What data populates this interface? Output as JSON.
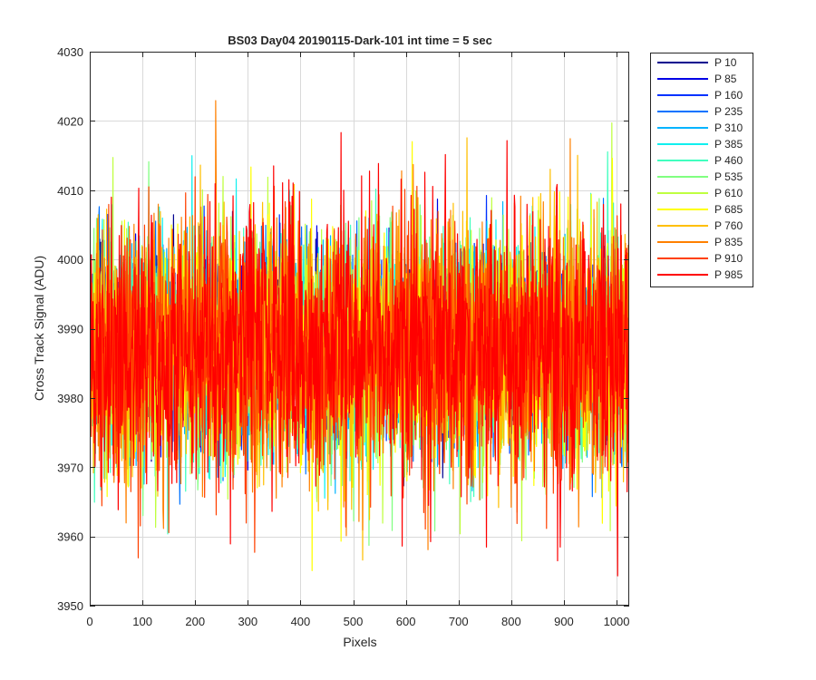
{
  "chart_data": {
    "type": "line",
    "title": "BS03 Day04 20190115-Dark-101 int time = 5 sec",
    "xlabel": "Pixels",
    "ylabel": "Cross Track Signal (ADU)",
    "xlim": [
      0,
      1024
    ],
    "ylim": [
      3950,
      4030
    ],
    "xticks": [
      0,
      100,
      200,
      300,
      400,
      500,
      600,
      700,
      800,
      900,
      1000
    ],
    "yticks": [
      3950,
      3960,
      3970,
      3980,
      3990,
      4000,
      4010,
      4020,
      4030
    ],
    "grid": true,
    "legend_position": "outside-top-right",
    "noise_model": {
      "points_per_series": 1024,
      "mean": 3987,
      "std_dev": 7.5,
      "min_observed": 3951,
      "max_observed": 4023
    },
    "series": [
      {
        "name": "P 10",
        "color": "#00008f"
      },
      {
        "name": "P 85",
        "color": "#0000e6"
      },
      {
        "name": "P 160",
        "color": "#0032ff"
      },
      {
        "name": "P 235",
        "color": "#0073ff"
      },
      {
        "name": "P 310",
        "color": "#00b4ff"
      },
      {
        "name": "P 385",
        "color": "#10f0ef"
      },
      {
        "name": "P 460",
        "color": "#40ffbf"
      },
      {
        "name": "P 535",
        "color": "#80ff80"
      },
      {
        "name": "P 610",
        "color": "#bfff40"
      },
      {
        "name": "P 685",
        "color": "#ffff00"
      },
      {
        "name": "P 760",
        "color": "#ffbf00"
      },
      {
        "name": "P 835",
        "color": "#ff8000"
      },
      {
        "name": "P 910",
        "color": "#ff4000"
      },
      {
        "name": "P 985",
        "color": "#ff0000"
      }
    ]
  }
}
